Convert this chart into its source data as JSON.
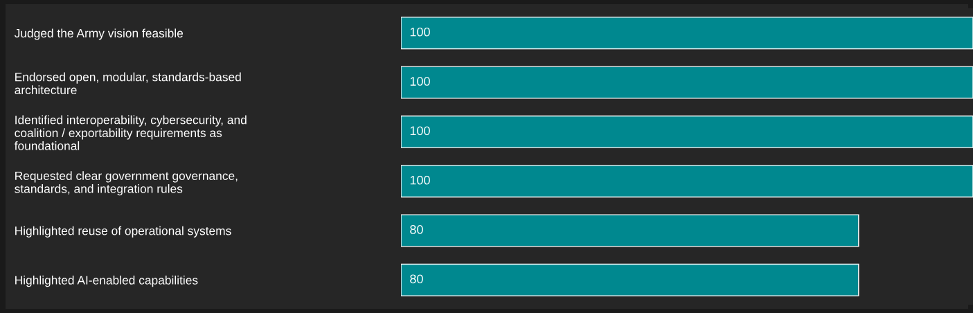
{
  "chart_data": {
    "type": "bar",
    "orientation": "horizontal",
    "categories": [
      "Judged the Army vision feasible",
      "Endorsed open, modular, standards-based\narchitecture",
      "Identified interoperability, cybersecurity, and\ncoalition / exportability requirements as\nfoundational",
      "Requested clear government governance,\nstandards, and integration rules",
      "Highlighted reuse of operational systems",
      "Highlighted AI-enabled capabilities"
    ],
    "values": [
      100,
      100,
      100,
      100,
      80,
      80
    ],
    "color": "#00888f",
    "xlim": [
      0,
      100
    ],
    "tick_labels": "y",
    "data_labels": true,
    "grid": false,
    "legend": false
  }
}
